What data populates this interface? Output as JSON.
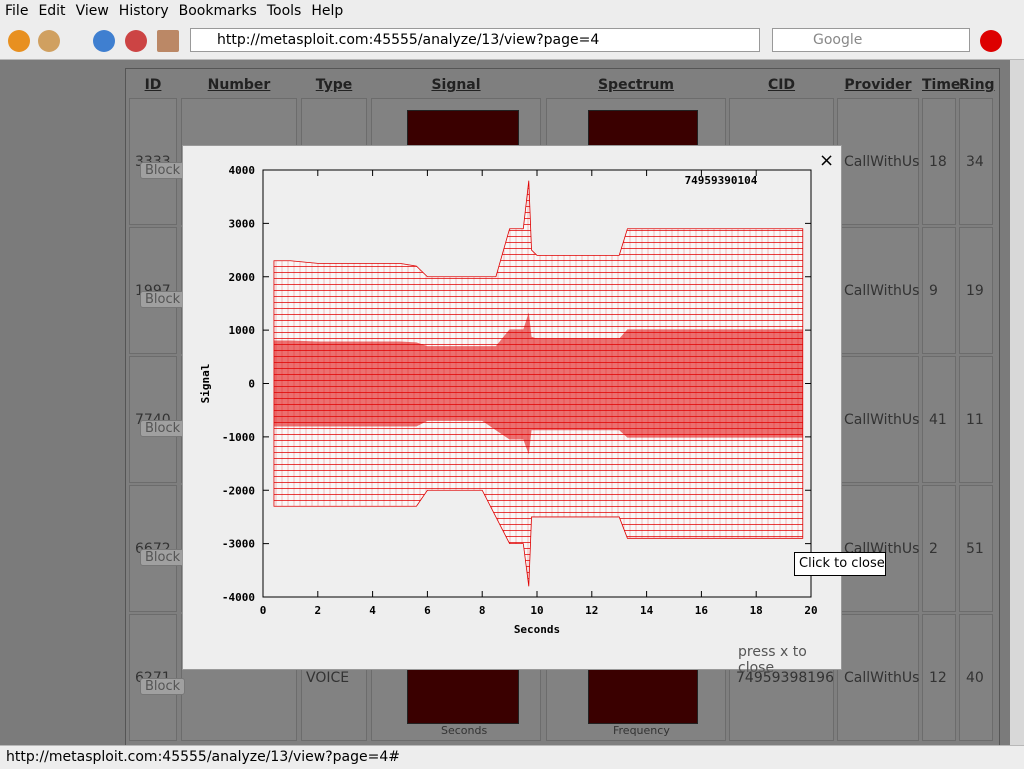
{
  "browser": {
    "menu": [
      "File",
      "Edit",
      "View",
      "History",
      "Bookmarks",
      "Tools",
      "Help"
    ],
    "url": "http://metasploit.com:45555/analyze/13/view?page=4",
    "search_placeholder": "Google",
    "status": "http://metasploit.com:45555/analyze/13/view?page=4#"
  },
  "table": {
    "headers": [
      "ID",
      "Number",
      "Type",
      "Signal",
      "Spectrum",
      "CID",
      "Provider",
      "Time",
      "Ring"
    ],
    "thumb_labels": [
      "Seconds",
      "Frequency"
    ],
    "rows": [
      {
        "id": "3333",
        "button": "Block",
        "provider": "CallWithUs",
        "time": 18,
        "ring": 34
      },
      {
        "id": "1997",
        "button": "Block",
        "provider": "CallWithUs",
        "time": 9,
        "ring": 19
      },
      {
        "id": "7740",
        "button": "Block",
        "provider": "CallWithUs",
        "time": 41,
        "ring": 11
      },
      {
        "id": "6672",
        "button": "Block",
        "provider": "CallWithUs",
        "time": 2,
        "ring": 51
      },
      {
        "id": "6271",
        "button": "Block",
        "type": "VOICE",
        "cid": "74959398196",
        "provider": "CallWithUs",
        "time": 12,
        "ring": 40
      }
    ]
  },
  "modal": {
    "close": "×",
    "close_hint": "press x to close",
    "tooltip": "Click to close"
  },
  "chart_data": {
    "type": "band",
    "title": "74959390104",
    "xlabel": "Seconds",
    "ylabel": "Signal",
    "color": "#e00000",
    "x": [
      0.4,
      1,
      2,
      3,
      4,
      5,
      5.6,
      6,
      7,
      8,
      8.5,
      9,
      9.5,
      9.7,
      9.8,
      10,
      10.5,
      11,
      12,
      13,
      13.3,
      14,
      15,
      16,
      17,
      18,
      19,
      19.7
    ],
    "upper": [
      2300,
      2300,
      2250,
      2250,
      2250,
      2250,
      2200,
      2000,
      2000,
      2000,
      2000,
      2900,
      2900,
      3800,
      2500,
      2400,
      2400,
      2400,
      2400,
      2400,
      2900,
      2900,
      2900,
      2900,
      2900,
      2900,
      2900,
      2900
    ],
    "lower": [
      -2300,
      -2300,
      -2300,
      -2300,
      -2300,
      -2300,
      -2300,
      -2000,
      -2000,
      -2000,
      -2500,
      -3000,
      -3000,
      -3800,
      -2500,
      -2500,
      -2500,
      -2500,
      -2500,
      -2500,
      -2900,
      -2900,
      -2900,
      -2900,
      -2900,
      -2900,
      -2900,
      -2900
    ],
    "xlim": [
      0,
      20
    ],
    "ylim": [
      -4000,
      4000
    ],
    "xticks": [
      0,
      2,
      4,
      6,
      8,
      10,
      12,
      14,
      16,
      18,
      20
    ],
    "yticks": [
      -4000,
      -3000,
      -2000,
      -1000,
      0,
      1000,
      2000,
      3000,
      4000
    ]
  }
}
